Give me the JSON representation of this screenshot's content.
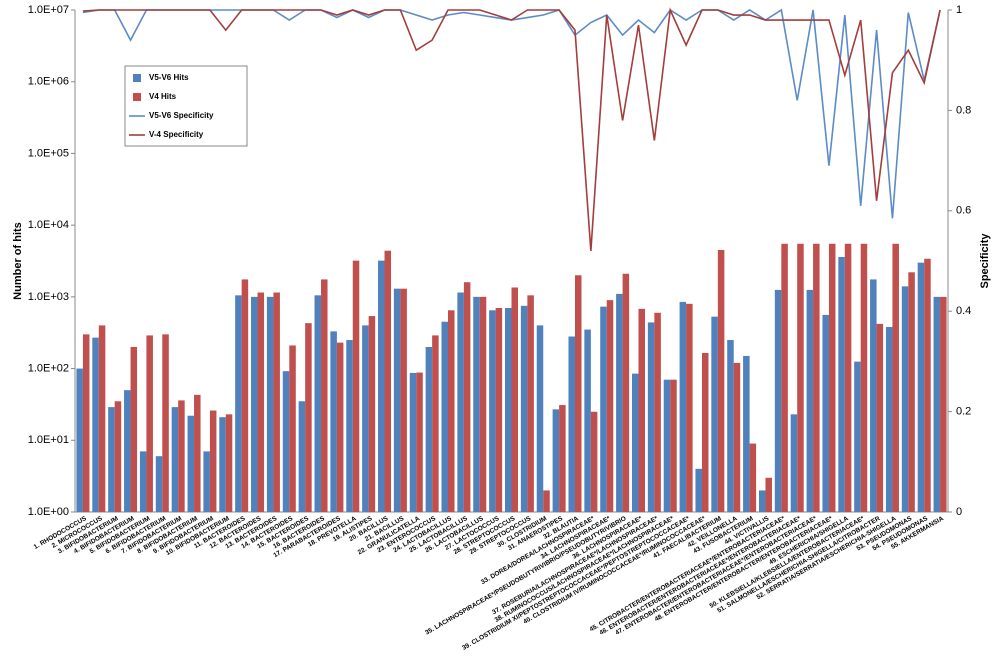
{
  "chart_data": {
    "type": "bar",
    "log": true,
    "ylabel": "Number of hits",
    "y2label": "Specificity",
    "legend": "upper left",
    "categories": [
      "1. RHODOCOCCUS",
      "2. MICROCOCCUS",
      "3. BIFIDOBACTERIUM",
      "4. BIFIDOBACTERIUM",
      "5. BIFIDOBACTERIUM",
      "6. BIFIDOBACTERIUM",
      "7. BIFIDOBACTERIUM",
      "8. BIFIDOBACTERIUM",
      "9. BIFIDOBACTERIUM",
      "10. BIFIDOBACTERIUM",
      "11. BACTEROIDES",
      "12. BACTEROIDES",
      "13. BACTEROIDES",
      "14. BACTEROIDES",
      "15. BACTEROIDES",
      "16. BACTEROIDES",
      "17. PARABACTEROIDES",
      "18. PREVOTELLA",
      "19. ALISTIPES",
      "20. BACILLUS",
      "21. BACILLUS",
      "22. GRANULICATELLA",
      "23. ENTEROCOCCUS",
      "24. LACTOBACILLUS",
      "25. LACTOBACILLUS",
      "26. LACTOBACILLUS",
      "27. LACTOCOCCUS",
      "28. STREPTOCOCCUS",
      "29. STREPTOCOCCUS",
      "30. CLOSTRIDIUM",
      "31. ANAEROSTIPES",
      "32. BLAUTIA",
      "33. DOREA/DOREA/LACHNOSPIRACEAE*",
      "34. LACHNOSPIRACEAE*",
      "35. LACHNOSPIRACEAE*/PSEUDOBUTYRIVIBRIO/PSEUDOBUTYRIVIBRIO",
      "36. LACHNOSPIRACEAE*",
      "37. ROSEBURIA/LACHNOSPIRACEAE*/LACHNOSPIRACEAE*",
      "38. RUMINOCOCCUS/LACHNOSPIRACEAE*/LACHNOSPIRACEAE*",
      "39. CLOSTRIDIUM XI/PEPTOSTREPTOCOCCACEAE*/PEPTOSTREPTOCOCCACEAE*",
      "40. CLOSTRIDIUM IV/RUMINOCOCCACEAE*/RUMINOCOCCACEAE*",
      "41. FAECALIBACTERIUM",
      "42. VEILLONELLA",
      "43. FUSOBACTERIUM",
      "44. VICTIVALLIS",
      "45. CITROBACTER/ENTEROBACTERIACEAE*/ENTEROBACTERIACEAE*",
      "46. ENTEROBACTER/ENTEROBACTERIACEAE*/ENTEROBACTERIACEAE*",
      "47. ENTEROBACTER/ENTEROBACTERIACEAE*/ENTEROBACTERIACEAE*",
      "48. ENTEROBACTER/ENTEROBACTER/ENTEROBACTERIACEAE*",
      "49. ESCHERICHIA/SHIGELLA",
      "50. KLEBSIELLA/KLEBSIELLA/ENTEROBACTERIACEAE*",
      "51. SALMONELLA/ESCHERICHIA-SHIGELLA/CITROBACTER",
      "52. SERRATIA/SERRATIA/ESCHERICHIA-SHIGELLA",
      "53. PSEUDOMONAS",
      "54. PSEUDOMONAS",
      "55. AKKERMANSIA"
    ],
    "series": [
      {
        "name": "V5-V6 Hits",
        "type": "bar",
        "color": "#4f81bd",
        "values": [
          100,
          270,
          29,
          50,
          7,
          6,
          29,
          22,
          7,
          21,
          1050,
          1000,
          1000,
          92,
          35,
          1050,
          330,
          250,
          400,
          3200,
          1300,
          87,
          200,
          450,
          1150,
          1000,
          650,
          700,
          750,
          400,
          27,
          280,
          350,
          730,
          1100,
          85,
          440,
          70,
          850,
          4,
          530,
          250,
          150,
          2,
          1250,
          23,
          1250,
          560,
          3600,
          125,
          1750,
          380,
          1400,
          3000,
          1000
        ]
      },
      {
        "name": "V4 Hits",
        "type": "bar",
        "color": "#c0504d",
        "values": [
          300,
          400,
          35,
          200,
          290,
          300,
          36,
          43,
          26,
          23,
          1750,
          1150,
          1150,
          210,
          430,
          1750,
          230,
          3200,
          540,
          4400,
          1300,
          88,
          290,
          650,
          1600,
          1000,
          700,
          1350,
          1050,
          2,
          31,
          2000,
          25,
          900,
          2100,
          680,
          600,
          70,
          800,
          165,
          4500,
          120,
          9,
          3,
          5500,
          5500,
          5500,
          5500,
          5500,
          5500,
          420,
          5500,
          2200,
          3400,
          1000
        ]
      },
      {
        "name": "V5-V6 Specificity",
        "type": "line",
        "axis": "y2",
        "color": "#5b8cc8",
        "values": [
          0.995,
          1,
          1,
          0.94,
          1,
          1,
          1,
          1,
          1,
          1,
          1,
          1,
          1,
          0.98,
          1,
          1,
          0.985,
          1,
          0.985,
          1,
          1,
          0.99,
          0.98,
          0.99,
          0.995,
          0.99,
          0.985,
          0.98,
          0.985,
          0.99,
          1,
          0.95,
          0.975,
          0.99,
          0.95,
          0.98,
          0.955,
          1,
          0.98,
          1,
          1,
          0.98,
          1,
          0.98,
          1,
          0.82,
          1,
          0.69,
          0.99,
          0.61,
          0.96,
          0.585,
          0.995,
          0.86,
          1
        ]
      },
      {
        "name": "V-4 Specificity",
        "type": "line",
        "axis": "y2",
        "color": "#a23e3b",
        "values": [
          0.998,
          1,
          1,
          1,
          1,
          1,
          1,
          1,
          1,
          0.96,
          1,
          1,
          1,
          1,
          1,
          1,
          0.99,
          1,
          0.99,
          1,
          1,
          0.92,
          0.94,
          1,
          1,
          1,
          0.99,
          0.98,
          1,
          1,
          1,
          0.96,
          0.52,
          0.99,
          0.78,
          0.97,
          0.74,
          1,
          0.93,
          1,
          1,
          0.99,
          0.99,
          0.98,
          0.98,
          0.98,
          0.98,
          0.98,
          0.87,
          0.98,
          0.62,
          0.875,
          0.92,
          0.855,
          1
        ]
      }
    ],
    "ylim": [
      1,
      10000000
    ],
    "yticks": [
      {
        "value": 1,
        "label": "1.0E+00"
      },
      {
        "value": 10,
        "label": "1.0E+01"
      },
      {
        "value": 100,
        "label": "1.0E+02"
      },
      {
        "value": 1000,
        "label": "1.0E+03"
      },
      {
        "value": 10000,
        "label": "1.0E+04"
      },
      {
        "value": 100000,
        "label": "1.0E+05"
      },
      {
        "value": 1000000,
        "label": "1.0E+06"
      },
      {
        "value": 10000000,
        "label": "1.0E+07"
      }
    ],
    "y2lim": [
      0,
      1
    ],
    "y2ticks": [
      0,
      0.2,
      0.4,
      0.6,
      0.8,
      1
    ]
  }
}
